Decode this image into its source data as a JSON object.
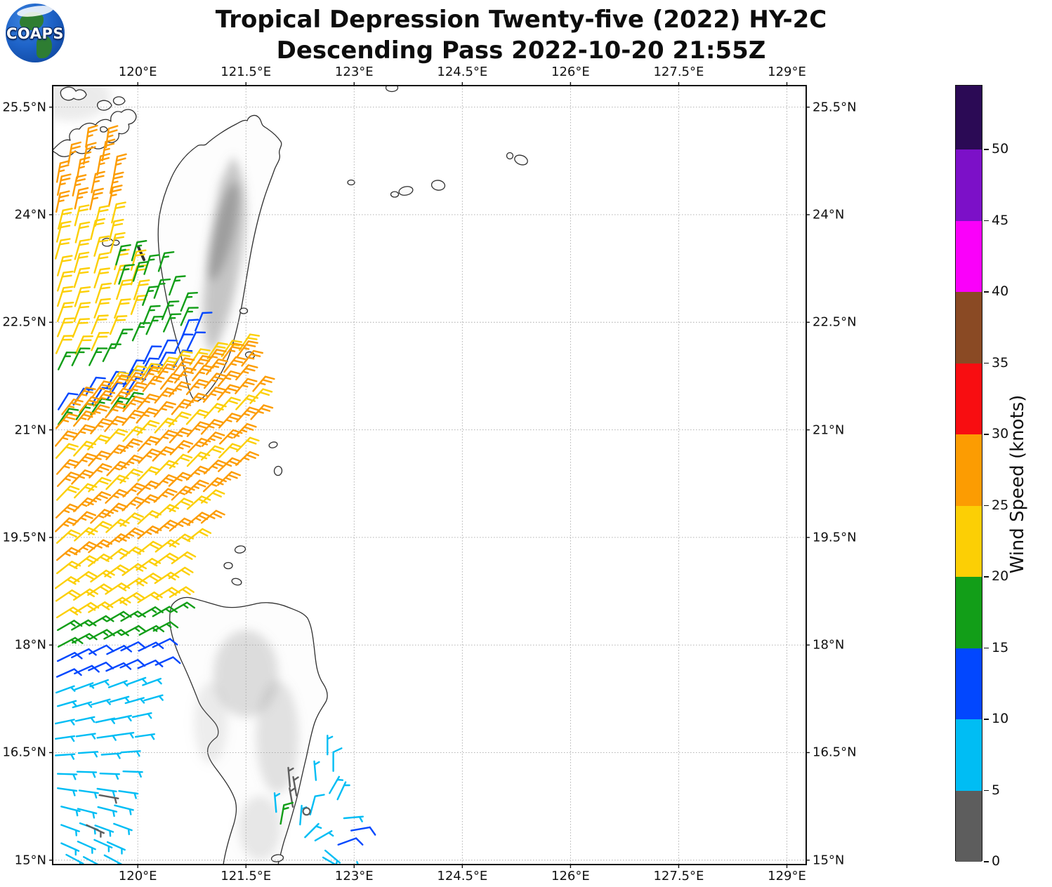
{
  "logo": {
    "text": "COAPS"
  },
  "title": {
    "line1": "Tropical Depression Twenty-five (2022) HY-2C",
    "line2": "Descending Pass 2022-10-20 21:55Z"
  },
  "map": {
    "lon_ticks": [
      {
        "label": "120°E",
        "value": 120
      },
      {
        "label": "121.5°E",
        "value": 121.5
      },
      {
        "label": "123°E",
        "value": 123
      },
      {
        "label": "124.5°E",
        "value": 124.5
      },
      {
        "label": "126°E",
        "value": 126
      },
      {
        "label": "127.5°E",
        "value": 127.5
      },
      {
        "label": "129°E",
        "value": 129
      }
    ],
    "lat_ticks": [
      {
        "label": "25.5°N",
        "value": 25.5
      },
      {
        "label": "24°N",
        "value": 24
      },
      {
        "label": "22.5°N",
        "value": 22.5
      },
      {
        "label": "21°N",
        "value": 21
      },
      {
        "label": "19.5°N",
        "value": 19.5
      },
      {
        "label": "18°N",
        "value": 18
      },
      {
        "label": "16.5°N",
        "value": 16.5
      },
      {
        "label": "15°N",
        "value": 15
      }
    ]
  },
  "colorbar": {
    "label": "Wind Speed (knots)",
    "tick_labels": [
      "0",
      "5",
      "10",
      "15",
      "20",
      "25",
      "30",
      "35",
      "40",
      "45",
      "50"
    ],
    "segments": [
      {
        "range": "0-5",
        "color": "#5d5d5d"
      },
      {
        "range": "5-10",
        "color": "#00bdf4"
      },
      {
        "range": "10-15",
        "color": "#0247fe"
      },
      {
        "range": "15-20",
        "color": "#129e18"
      },
      {
        "range": "20-25",
        "color": "#fccf05"
      },
      {
        "range": "25-30",
        "color": "#fc9c02"
      },
      {
        "range": "30-35",
        "color": "#f80d11"
      },
      {
        "range": "35-40",
        "color": "#8a4a24"
      },
      {
        "range": "40-45",
        "color": "#fa00fa"
      },
      {
        "range": "45-50",
        "color": "#7c10c8"
      },
      {
        "range": "50+",
        "color": "#2b0a55"
      }
    ]
  },
  "chart_data": {
    "type": "wind_barb_map",
    "title": "Tropical Depression Twenty-five (2022) HY-2C Descending Pass 2022-10-20 21:55Z",
    "satellite": "HY-2C",
    "pass_type": "Descending",
    "datetime_utc": "2022-10-20 21:55Z",
    "wind_speed_units": "knots",
    "lon_range": [
      118.82,
      129.27
    ],
    "lat_range": [
      14.94,
      25.8
    ],
    "grid_lons": [
      120,
      121.5,
      123,
      124.5,
      126,
      127.5,
      129
    ],
    "grid_lats": [
      15,
      16.5,
      18,
      19.5,
      21,
      22.5,
      24,
      25.5
    ],
    "speed_bins_knots": [
      0,
      5,
      10,
      15,
      20,
      25,
      30,
      35,
      40,
      45,
      50
    ],
    "barb_rows_format": [
      "lat_start",
      "lon_start",
      "lon_end",
      "lon_step",
      "lat_slope_per_lon",
      "wind_from_deg",
      "speed_knots"
    ],
    "barb_rows": [
      [
        24.92,
        119.3,
        119.6,
        0.26,
        0.1,
        8,
        27
      ],
      [
        24.7,
        119.02,
        119.7,
        0.24,
        0.1,
        10,
        27
      ],
      [
        24.48,
        118.9,
        119.74,
        0.26,
        0.1,
        10,
        27
      ],
      [
        24.26,
        118.88,
        119.78,
        0.24,
        0.09,
        12,
        27
      ],
      [
        24.04,
        118.88,
        119.8,
        0.24,
        0.09,
        12,
        27
      ],
      [
        23.82,
        118.88,
        119.72,
        0.26,
        0.09,
        14,
        22
      ],
      [
        23.6,
        118.88,
        119.8,
        0.24,
        0.09,
        14,
        22
      ],
      [
        23.38,
        118.88,
        119.86,
        0.25,
        0.09,
        16,
        22
      ],
      [
        23.16,
        118.88,
        119.92,
        0.26,
        0.09,
        16,
        22
      ],
      [
        22.94,
        118.88,
        119.98,
        0.26,
        0.1,
        18,
        22
      ],
      [
        22.72,
        118.88,
        120.02,
        0.27,
        0.1,
        18,
        22
      ],
      [
        22.5,
        118.88,
        119.98,
        0.26,
        0.11,
        20,
        22
      ],
      [
        22.28,
        118.88,
        119.6,
        0.24,
        0.1,
        22,
        22
      ],
      [
        22.06,
        118.88,
        119.55,
        0.25,
        0.1,
        24,
        22
      ],
      [
        23.28,
        119.7,
        119.92,
        0.2,
        0.45,
        16,
        17
      ],
      [
        23.02,
        119.75,
        120.3,
        0.18,
        0.4,
        18,
        17
      ],
      [
        22.74,
        120.05,
        120.45,
        0.19,
        0.4,
        20,
        17
      ],
      [
        22.46,
        120.1,
        120.6,
        0.24,
        0.4,
        22,
        17
      ],
      [
        22.18,
        119.7,
        120.6,
        0.22,
        0.3,
        24,
        17
      ],
      [
        22.3,
        120.62,
        120.8,
        0.17,
        0.45,
        22,
        12
      ],
      [
        21.95,
        120.1,
        120.72,
        0.2,
        0.3,
        26,
        12
      ],
      [
        21.72,
        119.85,
        120.5,
        0.21,
        0.28,
        28,
        12
      ],
      [
        21.5,
        119.3,
        120.1,
        0.26,
        0.22,
        30,
        12
      ],
      [
        21.3,
        118.88,
        119.85,
        0.24,
        0.18,
        32,
        12
      ],
      [
        21.85,
        118.88,
        119.55,
        0.22,
        0.15,
        26,
        17
      ],
      [
        21.1,
        118.9,
        119.95,
        0.23,
        0.2,
        34,
        17
      ],
      [
        21.6,
        119.6,
        121.4,
        0.225,
        0.28,
        34,
        22
      ],
      [
        21.4,
        119.15,
        121.45,
        0.225,
        0.28,
        36,
        27
      ],
      [
        21.2,
        118.95,
        121.5,
        0.225,
        0.28,
        38,
        27
      ],
      [
        21.0,
        118.88,
        121.55,
        0.225,
        0.28,
        40,
        27
      ],
      [
        20.8,
        118.88,
        121.58,
        0.225,
        0.28,
        40,
        27
      ],
      [
        20.6,
        118.88,
        121.6,
        0.225,
        0.28,
        42,
        22
      ],
      [
        20.4,
        118.88,
        121.6,
        0.225,
        0.28,
        42,
        27
      ],
      [
        20.2,
        118.88,
        121.56,
        0.225,
        0.28,
        44,
        27
      ],
      [
        20.0,
        118.88,
        121.48,
        0.225,
        0.28,
        44,
        22
      ],
      [
        19.8,
        118.88,
        121.36,
        0.225,
        0.28,
        46,
        27
      ],
      [
        19.6,
        118.88,
        121.22,
        0.225,
        0.28,
        46,
        27
      ],
      [
        19.4,
        118.88,
        121.08,
        0.225,
        0.28,
        48,
        22
      ],
      [
        19.2,
        118.88,
        120.95,
        0.225,
        0.26,
        50,
        27
      ],
      [
        19.0,
        118.88,
        120.78,
        0.225,
        0.24,
        52,
        22
      ],
      [
        18.8,
        118.88,
        120.6,
        0.225,
        0.22,
        54,
        22
      ],
      [
        18.6,
        118.88,
        120.52,
        0.225,
        0.2,
        56,
        22
      ],
      [
        18.4,
        118.88,
        120.48,
        0.225,
        0.18,
        58,
        22
      ],
      [
        18.2,
        118.88,
        120.46,
        0.225,
        0.16,
        60,
        17
      ],
      [
        18.0,
        118.88,
        120.4,
        0.225,
        0.14,
        62,
        17
      ],
      [
        17.8,
        118.88,
        120.34,
        0.225,
        0.12,
        64,
        12
      ],
      [
        17.58,
        118.88,
        120.28,
        0.225,
        0.1,
        66,
        12
      ],
      [
        17.36,
        118.88,
        120.26,
        0.24,
        0.08,
        70,
        7
      ],
      [
        17.14,
        118.88,
        120.22,
        0.24,
        0.06,
        74,
        7
      ],
      [
        16.92,
        118.88,
        120.1,
        0.26,
        0.05,
        78,
        7
      ],
      [
        16.7,
        118.88,
        119.98,
        0.27,
        0.04,
        82,
        7
      ],
      [
        16.46,
        118.88,
        119.88,
        0.3,
        0.03,
        86,
        7
      ],
      [
        16.22,
        118.88,
        119.8,
        0.3,
        0.02,
        92,
        7
      ],
      [
        15.98,
        118.9,
        119.76,
        0.28,
        0.0,
        98,
        7
      ],
      [
        15.74,
        118.92,
        119.72,
        0.26,
        0.0,
        104,
        7
      ],
      [
        15.5,
        118.94,
        119.66,
        0.24,
        0.0,
        110,
        7
      ],
      [
        15.26,
        118.96,
        119.6,
        0.21,
        0.0,
        114,
        7
      ],
      [
        15.06,
        119.0,
        119.56,
        0.27,
        0.0,
        118,
        7
      ]
    ],
    "barb_singles_format": [
      "lon",
      "lat",
      "wind_from_deg",
      "speed_knots"
    ],
    "barb_singles": [
      [
        119.45,
        15.93,
        100,
        4
      ],
      [
        119.3,
        15.49,
        115,
        4
      ],
      [
        122.62,
        16.45,
        0,
        7
      ],
      [
        122.73,
        16.25,
        0,
        10
      ],
      [
        122.47,
        16.1,
        355,
        7
      ],
      [
        122.64,
        15.95,
        30,
        7
      ],
      [
        122.78,
        15.84,
        25,
        7
      ],
      [
        122.1,
        16.05,
        355,
        4
      ],
      [
        122.22,
        15.9,
        350,
        4
      ],
      [
        122.15,
        15.72,
        350,
        4
      ],
      [
        121.9,
        15.68,
        355,
        7
      ],
      [
        122.4,
        15.62,
        15,
        10
      ],
      [
        122.85,
        15.6,
        85,
        7
      ],
      [
        122.0,
        15.5,
        10,
        17
      ],
      [
        122.25,
        15.52,
        5,
        7
      ],
      [
        122.3,
        15.32,
        45,
        7
      ],
      [
        122.47,
        15.25,
        60,
        7
      ],
      [
        122.95,
        15.42,
        80,
        12
      ],
      [
        122.8,
        15.2,
        70,
        12
      ],
      [
        122.6,
        15.15,
        130,
        7
      ],
      [
        122.55,
        15.03,
        120,
        7
      ],
      [
        123.05,
        15.0,
        160,
        7
      ]
    ],
    "calm_positions": [
      [
        122.34,
        15.68
      ]
    ]
  }
}
